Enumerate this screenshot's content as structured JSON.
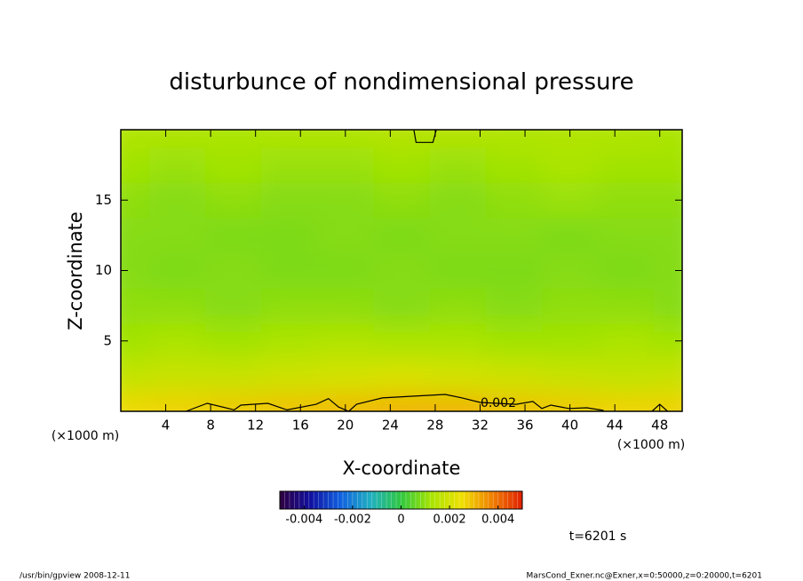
{
  "chart_data": {
    "type": "contour",
    "title": "disturbunce of nondimensional pressure",
    "xlabel": "X-coordinate",
    "ylabel": "Z-coordinate",
    "xunit": "(×1000 m)",
    "yunit": "(×1000 m)",
    "xlim": [
      0,
      50
    ],
    "ylim": [
      0,
      20
    ],
    "xticks": [
      4,
      8,
      12,
      16,
      20,
      24,
      28,
      32,
      36,
      40,
      44,
      48
    ],
    "yticks": [
      5,
      10,
      15
    ],
    "x": [
      0,
      5,
      10,
      15,
      20,
      25,
      30,
      35,
      40,
      45,
      50
    ],
    "y": [
      0,
      2.5,
      5,
      7.5,
      10,
      12.5,
      15,
      17.5,
      20
    ],
    "z": [
      [
        0.0026,
        0.0027,
        0.0028,
        0.0029,
        0.003,
        0.0031,
        0.0031,
        0.0029,
        0.0028,
        0.0027,
        0.0027
      ],
      [
        0.0017,
        0.0018,
        0.0018,
        0.0019,
        0.002,
        0.0021,
        0.002,
        0.0019,
        0.0018,
        0.0017,
        0.0018
      ],
      [
        0.0012,
        0.0013,
        0.0012,
        0.0013,
        0.0014,
        0.0013,
        0.0013,
        0.0012,
        0.0012,
        0.0013,
        0.0012
      ],
      [
        0.001,
        0.001,
        0.0009,
        0.001,
        0.001,
        0.0009,
        0.001,
        0.0009,
        0.001,
        0.001,
        0.0009
      ],
      [
        0.0009,
        0.0008,
        0.0009,
        0.0008,
        0.0008,
        0.0009,
        0.0008,
        0.0008,
        0.0009,
        0.0008,
        0.0009
      ],
      [
        0.0009,
        0.0009,
        0.0008,
        0.0008,
        0.0009,
        0.0008,
        0.0009,
        0.0009,
        0.0008,
        0.0009,
        0.0009
      ],
      [
        0.001,
        0.0009,
        0.001,
        0.0009,
        0.0009,
        0.001,
        0.0009,
        0.001,
        0.0011,
        0.001,
        0.001
      ],
      [
        0.0012,
        0.0011,
        0.0012,
        0.0011,
        0.0011,
        0.0012,
        0.0011,
        0.0012,
        0.0013,
        0.0012,
        0.0012
      ],
      [
        0.0014,
        0.0014,
        0.0013,
        0.0014,
        0.0014,
        0.0015,
        0.0015,
        0.0014,
        0.0014,
        0.0014,
        0.0013
      ]
    ],
    "colorbar": {
      "clim": [
        -0.005,
        0.005
      ],
      "ticks": [
        -0.004,
        -0.002,
        0,
        0.002,
        0.004
      ],
      "colors": [
        "#300040",
        "#1010a0",
        "#1060e0",
        "#20b0c0",
        "#30c840",
        "#a8e400",
        "#f0e000",
        "#f08000",
        "#e02000"
      ]
    },
    "contours": [
      {
        "level": 0.002,
        "x": [
          5.8,
          7.7,
          10.1,
          10.7,
          13.1,
          14.8,
          17.4,
          18.5,
          19.4,
          20.3,
          21,
          23.3,
          26.5,
          28.9,
          30.4,
          32,
          35.2,
          36.7,
          37.5,
          38.3,
          39.9,
          41.5,
          43,
          null,
          47.3,
          48,
          48.7,
          null,
          26.1,
          26.3,
          27.8,
          28.1
        ],
        "y": [
          0,
          0.57,
          0.1,
          0.44,
          0.57,
          0.1,
          0.5,
          0.9,
          0.3,
          0,
          0.5,
          0.95,
          1.1,
          1.2,
          0.95,
          0.63,
          0.5,
          0.7,
          0.2,
          0.44,
          0.2,
          0.25,
          0.06,
          null,
          0,
          0.5,
          0,
          null,
          20,
          19.1,
          19.1,
          20
        ]
      }
    ],
    "annotation": "t=6201 s",
    "footer_left": "/usr/bin/gpview  2008-12-11",
    "footer_right": "MarsCond_Exner.nc@Exner,x=0:50000,z=0:20000,t=6201"
  }
}
